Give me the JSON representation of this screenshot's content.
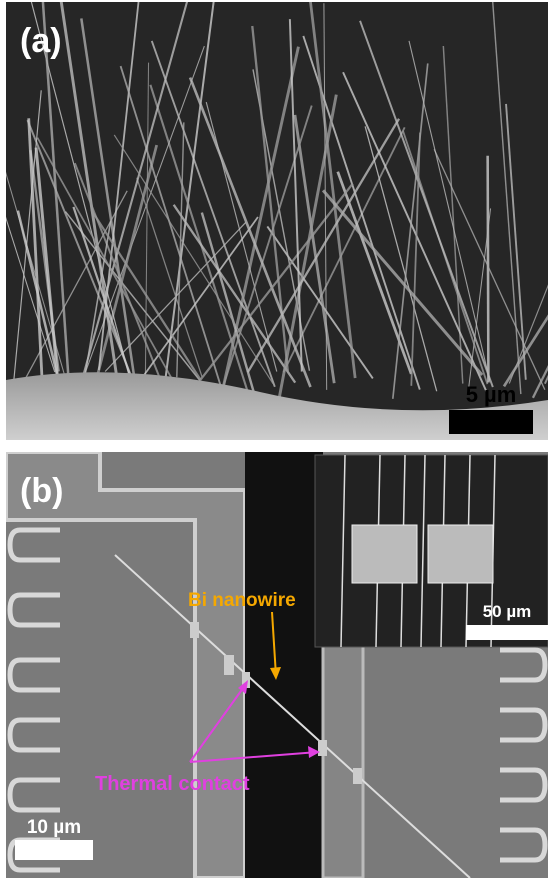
{
  "panels": {
    "a": {
      "label": "(a)",
      "scale_bar": "5 µm"
    },
    "b": {
      "label": "(b)",
      "inset_scale_bar": "50 µm",
      "scale_bar": "10 µm",
      "annotations": [
        "Bi nanowire",
        "Thermal contact"
      ]
    }
  }
}
